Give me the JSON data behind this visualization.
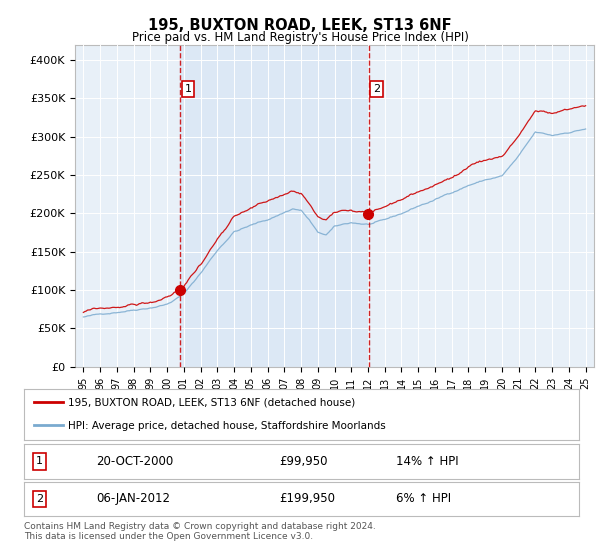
{
  "title": "195, BUXTON ROAD, LEEK, ST13 6NF",
  "subtitle": "Price paid vs. HM Land Registry's House Price Index (HPI)",
  "legend_line1": "195, BUXTON ROAD, LEEK, ST13 6NF (detached house)",
  "legend_line2": "HPI: Average price, detached house, Staffordshire Moorlands",
  "table_row1_num": "1",
  "table_row1_date": "20-OCT-2000",
  "table_row1_price": "£99,950",
  "table_row1_hpi": "14% ↑ HPI",
  "table_row2_num": "2",
  "table_row2_date": "06-JAN-2012",
  "table_row2_price": "£199,950",
  "table_row2_hpi": "6% ↑ HPI",
  "footer": "Contains HM Land Registry data © Crown copyright and database right 2024.\nThis data is licensed under the Open Government Licence v3.0.",
  "ylim": [
    0,
    420000
  ],
  "yticks": [
    0,
    50000,
    100000,
    150000,
    200000,
    250000,
    300000,
    350000,
    400000
  ],
  "ytick_labels": [
    "£0",
    "£50K",
    "£100K",
    "£150K",
    "£200K",
    "£250K",
    "£300K",
    "£350K",
    "£400K"
  ],
  "sale1_year": 2000.79,
  "sale1_price": 99950,
  "sale2_year": 2012.04,
  "sale2_price": 199950,
  "red_color": "#cc0000",
  "blue_color": "#7aaacf",
  "shade_color": "#dce8f5",
  "fig_bg": "#ffffff",
  "plot_bg": "#e8f0f8",
  "grid_color": "#ffffff"
}
